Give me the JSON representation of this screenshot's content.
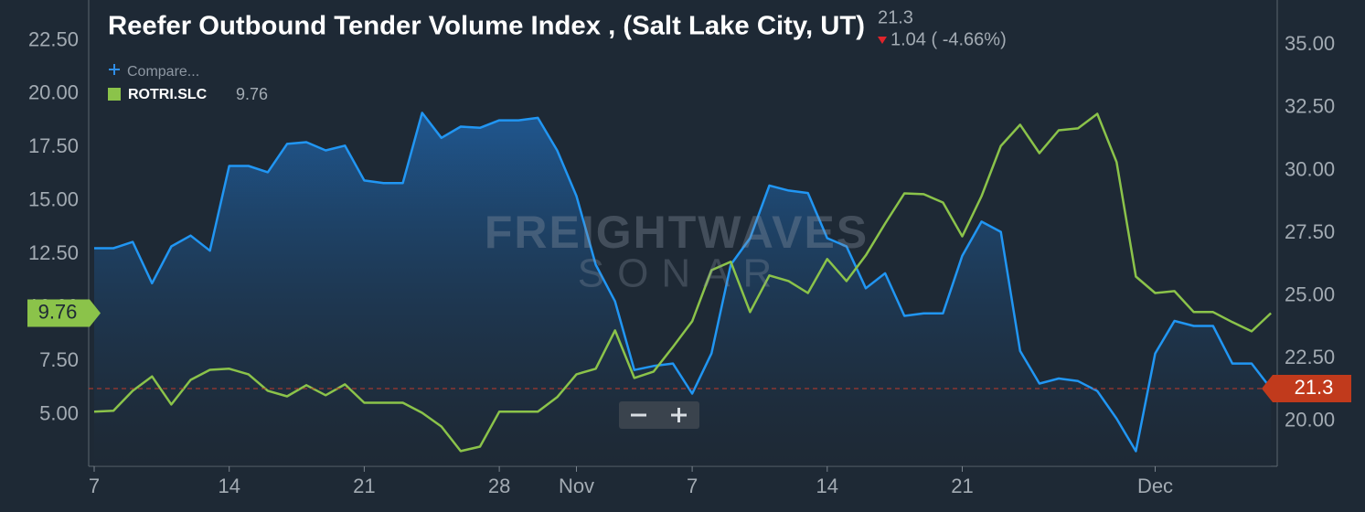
{
  "chart_data": {
    "type": "line",
    "compare_label": "Compare...",
    "change_label": "1.04 ( -4.66%)",
    "watermark": [
      "FREIGHTWAVES",
      "SONAR"
    ],
    "categories": [
      "7",
      null,
      null,
      null,
      null,
      null,
      null,
      "14",
      null,
      null,
      null,
      null,
      null,
      null,
      "21",
      null,
      null,
      null,
      null,
      null,
      null,
      "28",
      null,
      null,
      null,
      "Nov",
      null,
      null,
      null,
      null,
      null,
      "7",
      null,
      null,
      null,
      null,
      null,
      null,
      "14",
      null,
      null,
      null,
      null,
      null,
      null,
      "21",
      null,
      null,
      null,
      null,
      null,
      null,
      null,
      null,
      null,
      "Dec",
      null,
      null,
      null,
      null,
      null,
      null
    ],
    "series": [
      {
        "name": "Reefer Outbound Tender Volume Index , (Salt Lake City, UT)",
        "color": "#2196f3",
        "axis": "y2",
        "area": true,
        "values": [
          26.9,
          26.9,
          27.15,
          25.5,
          26.97,
          27.4,
          26.8,
          30.18,
          30.18,
          29.93,
          31.06,
          31.13,
          30.8,
          30.99,
          29.6,
          29.5,
          29.5,
          32.3,
          31.3,
          31.75,
          31.7,
          32.0,
          32.0,
          32.1,
          30.8,
          28.98,
          26.24,
          24.78,
          22.04,
          22.2,
          22.3,
          21.1,
          22.7,
          26.24,
          27.3,
          29.4,
          29.2,
          29.1,
          27.3,
          26.97,
          25.3,
          25.9,
          24.2,
          24.3,
          24.3,
          26.6,
          27.96,
          27.55,
          22.8,
          21.5,
          21.7,
          21.6,
          21.2,
          20.1,
          18.8,
          22.7,
          24.0,
          23.8,
          23.8,
          22.3,
          22.3,
          21.3
        ]
      },
      {
        "name": "ROTRI.SLC",
        "color": "#8bc34a",
        "values": [
          5.15,
          5.2,
          6.13,
          6.8,
          5.49,
          6.64,
          7.11,
          7.16,
          6.9,
          6.13,
          5.87,
          6.39,
          5.92,
          6.43,
          5.57,
          5.57,
          5.57,
          5.1,
          4.46,
          3.31,
          3.52,
          5.15,
          5.15,
          5.15,
          5.83,
          6.9,
          7.16,
          8.95,
          6.73,
          7.03,
          8.18,
          9.38,
          11.77,
          12.16,
          9.81,
          11.52,
          11.26,
          10.7,
          12.29,
          11.26,
          12.46,
          13.95,
          15.36,
          15.32,
          14.93,
          13.35,
          15.23,
          17.58,
          18.57,
          17.24,
          18.31,
          18.4,
          19.08,
          16.82,
          11.47,
          10.7,
          10.79,
          9.81,
          9.81,
          9.34,
          8.91,
          9.76
        ]
      }
    ],
    "ylim": [
      2.6,
      24.4
    ],
    "yticks": [
      {
        "value": 5,
        "label": "5.00"
      },
      {
        "value": 7.5,
        "label": "7.50"
      },
      {
        "value": 10,
        "label": "10.00"
      },
      {
        "value": 12.5,
        "label": "12.50"
      },
      {
        "value": 15,
        "label": "15.00"
      },
      {
        "value": 17.5,
        "label": "17.50"
      },
      {
        "value": 20,
        "label": "20.00"
      },
      {
        "value": 22.5,
        "label": "22.50"
      }
    ],
    "y2lim": [
      18.2,
      36.8
    ],
    "y2ticks": [
      {
        "value": 20,
        "label": "20.00"
      },
      {
        "value": 22.5,
        "label": "22.50"
      },
      {
        "value": 25,
        "label": "25.00"
      },
      {
        "value": 27.5,
        "label": "27.50"
      },
      {
        "value": 30,
        "label": "30.00"
      },
      {
        "value": 32.5,
        "label": "32.50"
      },
      {
        "value": 35,
        "label": "35.00"
      }
    ],
    "grid": false
  }
}
